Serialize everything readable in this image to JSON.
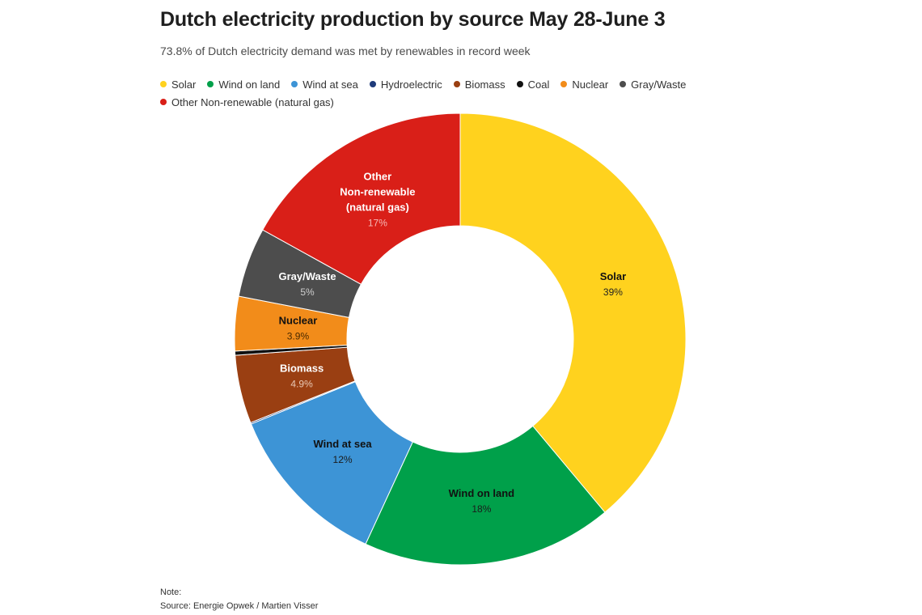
{
  "title": "Dutch electricity production by source May 28-June 3",
  "subtitle": "73.8% of Dutch electricity demand was met by renewables in record week",
  "legend": [
    {
      "label": "Solar",
      "color": "#FFD21E"
    },
    {
      "label": "Wind on land",
      "color": "#00A04A"
    },
    {
      "label": "Wind at sea",
      "color": "#3D94D6"
    },
    {
      "label": "Hydroelectric",
      "color": "#1E3B7A"
    },
    {
      "label": "Biomass",
      "color": "#9A3F12"
    },
    {
      "label": "Coal",
      "color": "#111111"
    },
    {
      "label": "Nuclear",
      "color": "#F28C1A"
    },
    {
      "label": "Gray/Waste",
      "color": "#4D4D4D"
    },
    {
      "label": "Other Non-renewable (natural gas)",
      "color": "#D91F18"
    }
  ],
  "chart_data": {
    "type": "pie",
    "title": "Dutch electricity production by source May 28-June 3",
    "subtitle": "73.8% of Dutch electricity demand was met by renewables in record week",
    "unit": "%",
    "donut": true,
    "legend_position": "top",
    "slices": [
      {
        "name": "Solar",
        "value": 39,
        "color": "#FFD21E",
        "label_lines": [
          "Solar"
        ],
        "value_label": "39%",
        "label_color": "#111111",
        "value_color": "#222222"
      },
      {
        "name": "Wind on land",
        "value": 18,
        "color": "#00A04A",
        "label_lines": [
          "Wind on land"
        ],
        "value_label": "18%",
        "label_color": "#111111",
        "value_color": "#1b1b1b"
      },
      {
        "name": "Wind at sea",
        "value": 12,
        "color": "#3D94D6",
        "label_lines": [
          "Wind at sea"
        ],
        "value_label": "12%",
        "label_color": "#111111",
        "value_color": "#1b1b1b"
      },
      {
        "name": "Hydroelectric",
        "value": 0.1,
        "color": "#1E3B7A",
        "label_lines": [],
        "value_label": "",
        "label_color": "#ffffff",
        "value_color": "#ffffff"
      },
      {
        "name": "Biomass",
        "value": 4.9,
        "color": "#9A3F12",
        "label_lines": [
          "Biomass"
        ],
        "value_label": "4.9%",
        "label_color": "#ffffff",
        "value_color": "#e9c9b5"
      },
      {
        "name": "Coal",
        "value": 0.3,
        "color": "#111111",
        "label_lines": [],
        "value_label": "",
        "label_color": "#ffffff",
        "value_color": "#ffffff"
      },
      {
        "name": "Nuclear",
        "value": 3.9,
        "color": "#F28C1A",
        "label_lines": [
          "Nuclear"
        ],
        "value_label": "3.9%",
        "label_color": "#111111",
        "value_color": "#4a2a00"
      },
      {
        "name": "Gray/Waste",
        "value": 5,
        "color": "#4D4D4D",
        "label_lines": [
          "Gray/Waste"
        ],
        "value_label": "5%",
        "label_color": "#ffffff",
        "value_color": "#cfcfcf"
      },
      {
        "name": "Other Non-renewable (natural gas)",
        "value": 17,
        "color": "#D91F18",
        "label_lines": [
          "Other",
          "Non-renewable",
          "(natural gas)"
        ],
        "value_label": "17%",
        "label_color": "#ffffff",
        "value_color": "#f6b8b5"
      }
    ]
  },
  "note": {
    "note_label": "Note:",
    "source": "Source: Energie Opwek / Martien Visser"
  }
}
